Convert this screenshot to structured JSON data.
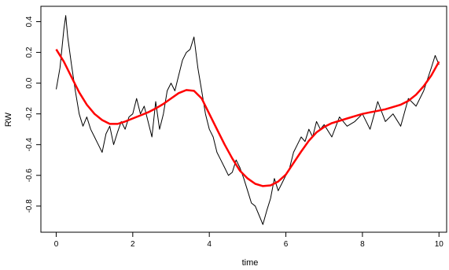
{
  "chart_data": {
    "type": "line",
    "xlabel": "time",
    "ylabel": "RW",
    "xlim": [
      -0.4,
      10.2
    ],
    "ylim": [
      -0.97,
      0.5
    ],
    "x_ticks": [
      0,
      2,
      4,
      6,
      8,
      10
    ],
    "y_ticks": [
      -0.8,
      -0.6,
      -0.4,
      -0.2,
      0.0,
      0.2,
      0.4
    ],
    "x_tick_labels": [
      "0",
      "2",
      "4",
      "6",
      "8",
      "10"
    ],
    "y_tick_labels": [
      "-0.8",
      "-0.6",
      "-0.4",
      "-0.2",
      "0.0",
      "0.2",
      "0.4"
    ],
    "grid": false,
    "series": [
      {
        "color": "#000000",
        "x": [
          0.0,
          0.1,
          0.2,
          0.25,
          0.3,
          0.4,
          0.5,
          0.6,
          0.7,
          0.8,
          0.9,
          1.0,
          1.1,
          1.2,
          1.3,
          1.4,
          1.5,
          1.6,
          1.7,
          1.8,
          1.9,
          2.0,
          2.1,
          2.2,
          2.3,
          2.4,
          2.5,
          2.6,
          2.7,
          2.8,
          2.9,
          3.0,
          3.1,
          3.2,
          3.3,
          3.4,
          3.5,
          3.6,
          3.7,
          3.8,
          3.9,
          4.0,
          4.1,
          4.2,
          4.3,
          4.4,
          4.5,
          4.6,
          4.7,
          4.8,
          4.9,
          5.0,
          5.1,
          5.2,
          5.3,
          5.4,
          5.5,
          5.6,
          5.7,
          5.8,
          5.9,
          6.0,
          6.1,
          6.2,
          6.3,
          6.4,
          6.5,
          6.6,
          6.7,
          6.8,
          6.9,
          7.0,
          7.2,
          7.4,
          7.6,
          7.8,
          8.0,
          8.2,
          8.4,
          8.6,
          8.8,
          9.0,
          9.2,
          9.4,
          9.6,
          9.8,
          9.9,
          10.0
        ],
        "values": [
          -0.04,
          0.1,
          0.35,
          0.44,
          0.3,
          0.12,
          -0.05,
          -0.2,
          -0.28,
          -0.22,
          -0.3,
          -0.35,
          -0.4,
          -0.45,
          -0.33,
          -0.28,
          -0.4,
          -0.32,
          -0.25,
          -0.3,
          -0.22,
          -0.2,
          -0.1,
          -0.2,
          -0.15,
          -0.25,
          -0.35,
          -0.12,
          -0.3,
          -0.2,
          -0.05,
          0.0,
          -0.05,
          0.05,
          0.15,
          0.2,
          0.22,
          0.3,
          0.1,
          -0.05,
          -0.2,
          -0.3,
          -0.35,
          -0.45,
          -0.5,
          -0.55,
          -0.6,
          -0.58,
          -0.5,
          -0.55,
          -0.62,
          -0.7,
          -0.78,
          -0.8,
          -0.86,
          -0.92,
          -0.83,
          -0.75,
          -0.62,
          -0.7,
          -0.65,
          -0.6,
          -0.55,
          -0.45,
          -0.4,
          -0.35,
          -0.38,
          -0.3,
          -0.35,
          -0.25,
          -0.3,
          -0.27,
          -0.35,
          -0.22,
          -0.28,
          -0.25,
          -0.2,
          -0.3,
          -0.12,
          -0.25,
          -0.2,
          -0.28,
          -0.1,
          -0.15,
          -0.05,
          0.1,
          0.18,
          0.12
        ]
      },
      {
        "color": "#ff0000",
        "x": [
          0.0,
          0.2,
          0.4,
          0.6,
          0.8,
          1.0,
          1.2,
          1.4,
          1.6,
          1.8,
          2.0,
          2.2,
          2.4,
          2.6,
          2.8,
          3.0,
          3.2,
          3.4,
          3.6,
          3.8,
          4.0,
          4.2,
          4.4,
          4.6,
          4.8,
          5.0,
          5.2,
          5.4,
          5.6,
          5.8,
          6.0,
          6.2,
          6.4,
          6.6,
          6.8,
          7.0,
          7.2,
          7.4,
          7.6,
          7.8,
          8.0,
          8.2,
          8.4,
          8.6,
          8.8,
          9.0,
          9.2,
          9.4,
          9.6,
          9.8,
          10.0
        ],
        "values": [
          0.22,
          0.14,
          0.04,
          -0.06,
          -0.14,
          -0.2,
          -0.24,
          -0.265,
          -0.265,
          -0.25,
          -0.23,
          -0.21,
          -0.19,
          -0.165,
          -0.135,
          -0.1,
          -0.065,
          -0.045,
          -0.05,
          -0.1,
          -0.2,
          -0.3,
          -0.4,
          -0.49,
          -0.57,
          -0.62,
          -0.655,
          -0.67,
          -0.665,
          -0.64,
          -0.595,
          -0.52,
          -0.445,
          -0.375,
          -0.32,
          -0.285,
          -0.26,
          -0.245,
          -0.23,
          -0.215,
          -0.2,
          -0.19,
          -0.18,
          -0.17,
          -0.155,
          -0.14,
          -0.115,
          -0.075,
          -0.02,
          0.05,
          0.14
        ]
      }
    ]
  }
}
